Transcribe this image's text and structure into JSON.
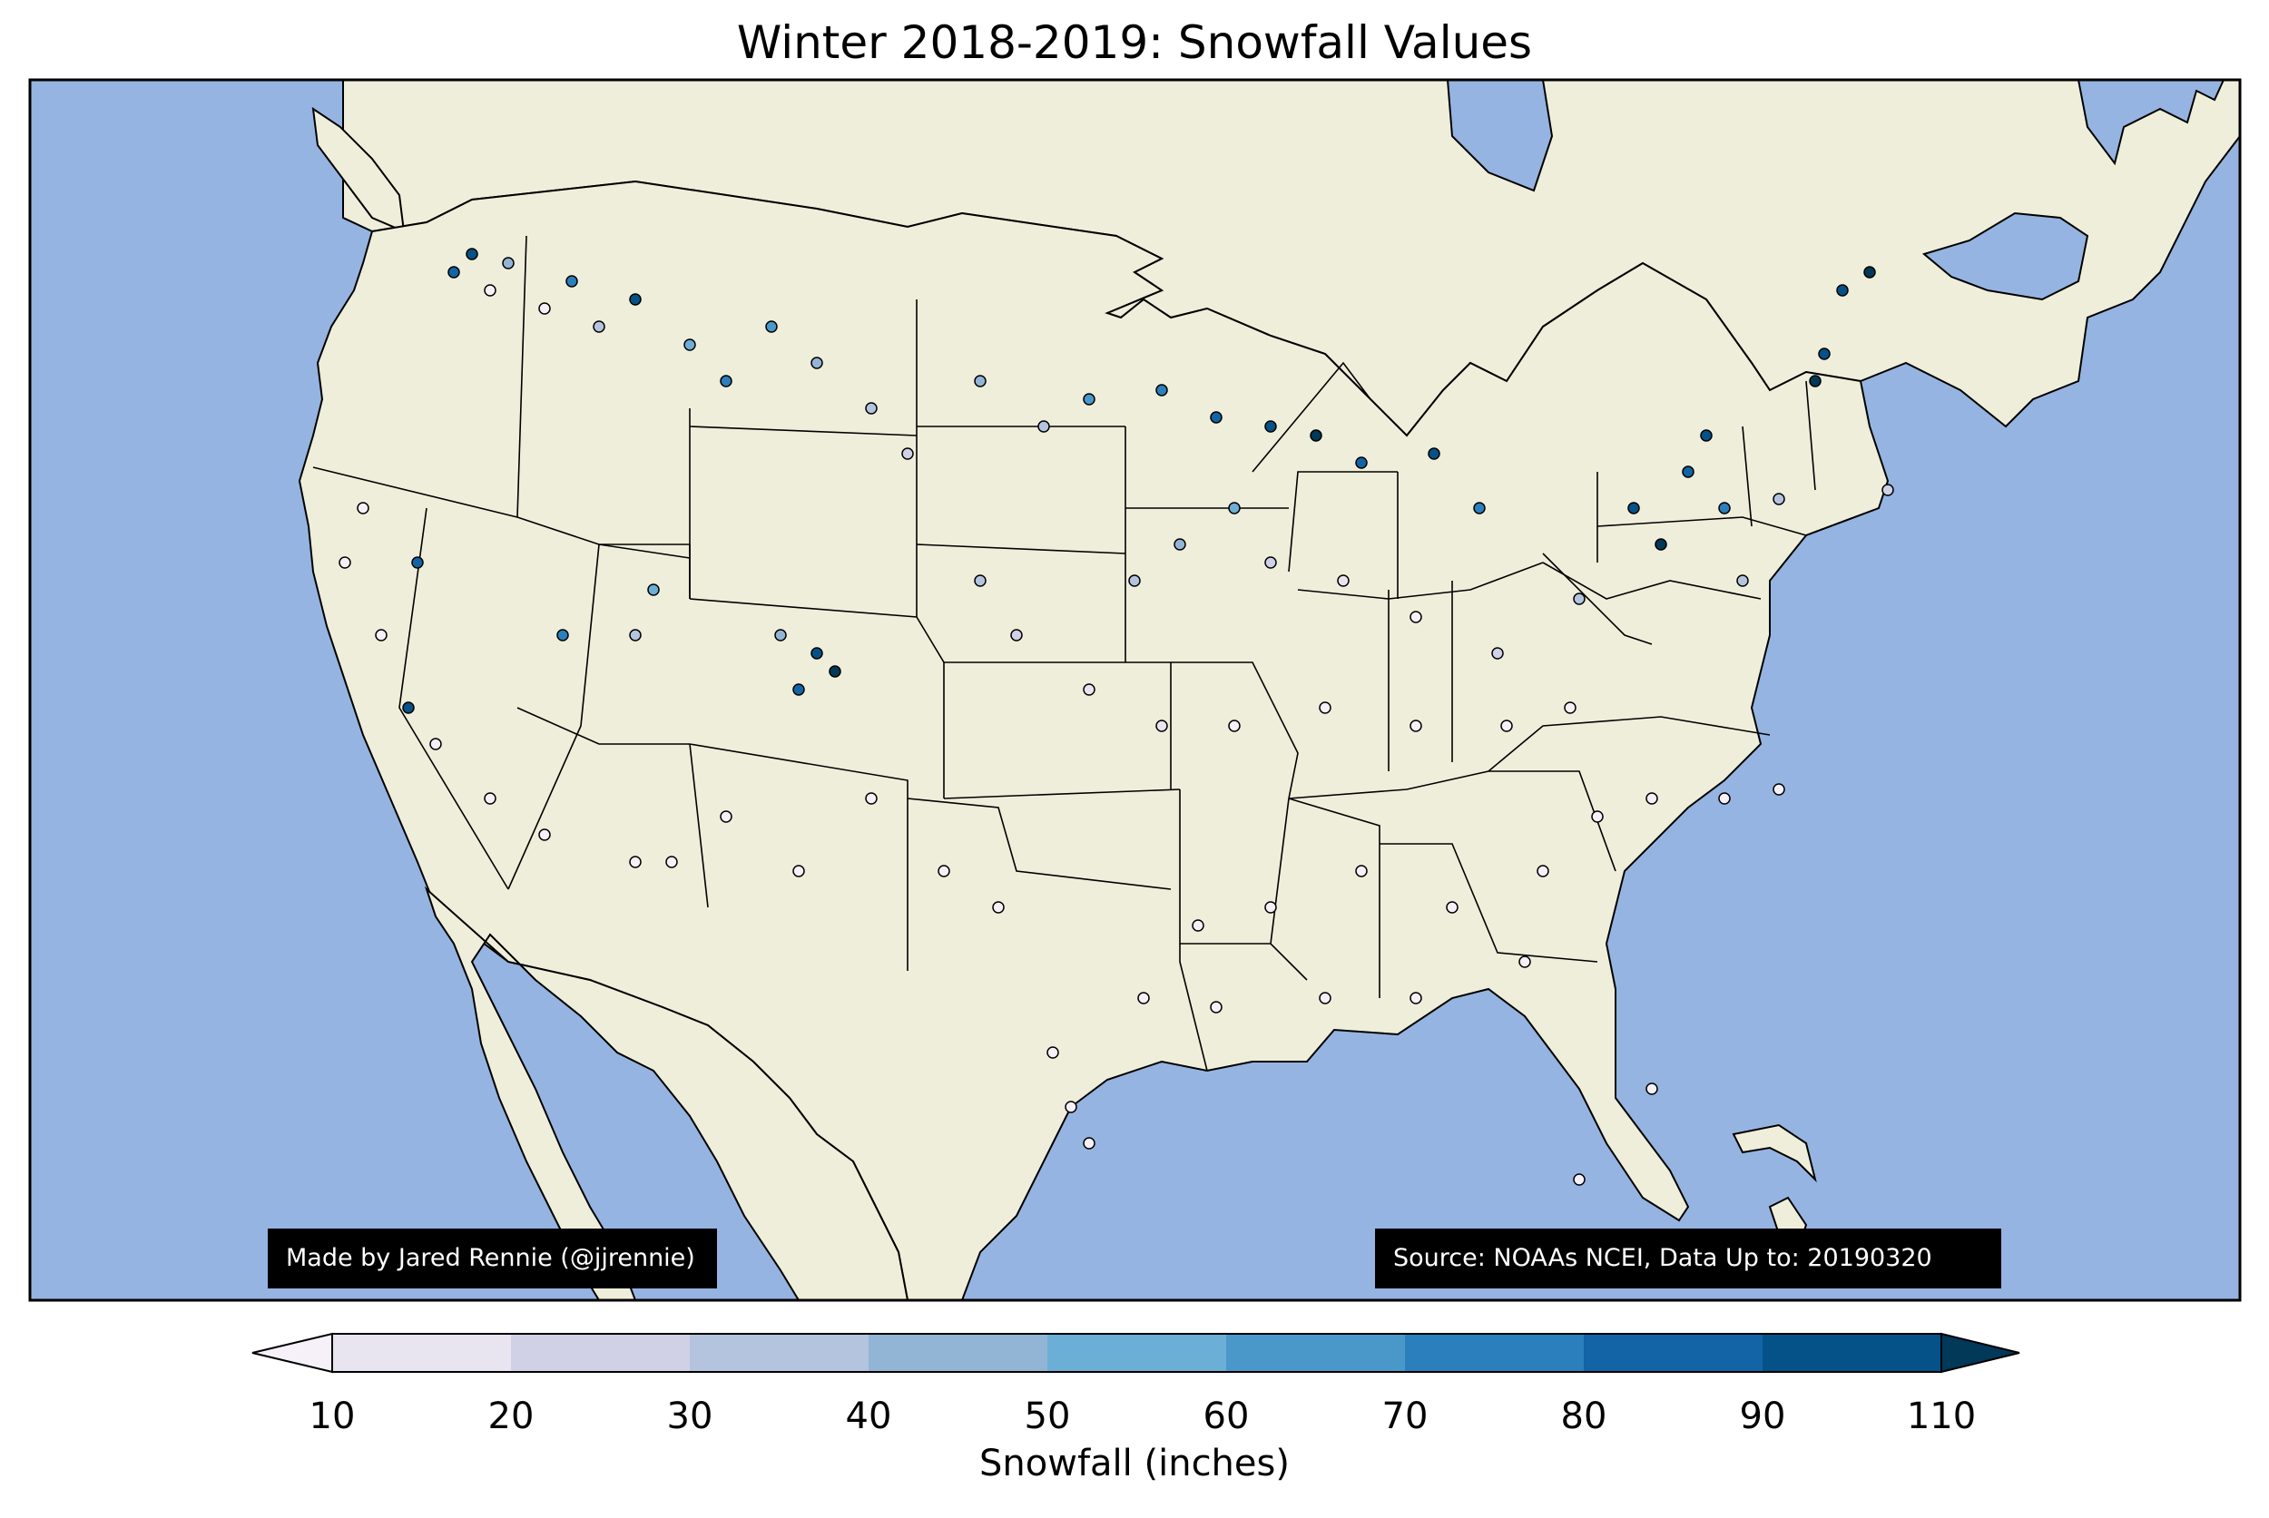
{
  "title": "Winter 2018-2019: Snowfall Values",
  "credit_left": "Made by Jared Rennie (@jjrennie)",
  "credit_right": "Source: NOAAs NCEI, Data Up to: 20190320",
  "colors": {
    "ocean": "#95b4e1",
    "land": "#efeedb",
    "border": "#000000"
  },
  "colorbar": {
    "label": "Snowfall (inches)",
    "ticks": [
      "10",
      "20",
      "30",
      "40",
      "50",
      "60",
      "70",
      "80",
      "90",
      "110"
    ],
    "bin_colors": [
      "#e8e4f0",
      "#d0d1e6",
      "#b4c4df",
      "#92b5d6",
      "#6baed6",
      "#4a98c9",
      "#2a7fbc",
      "#1264a6",
      "#045287"
    ],
    "under_color": "#f6f1f8",
    "over_color": "#023858",
    "extend": "both"
  },
  "legend_items": [
    {
      "name": "Made by Jared Rennie (@jjrennie)"
    },
    {
      "name": "Source: NOAAs NCEI, Data Up to: 20190320"
    }
  ]
}
